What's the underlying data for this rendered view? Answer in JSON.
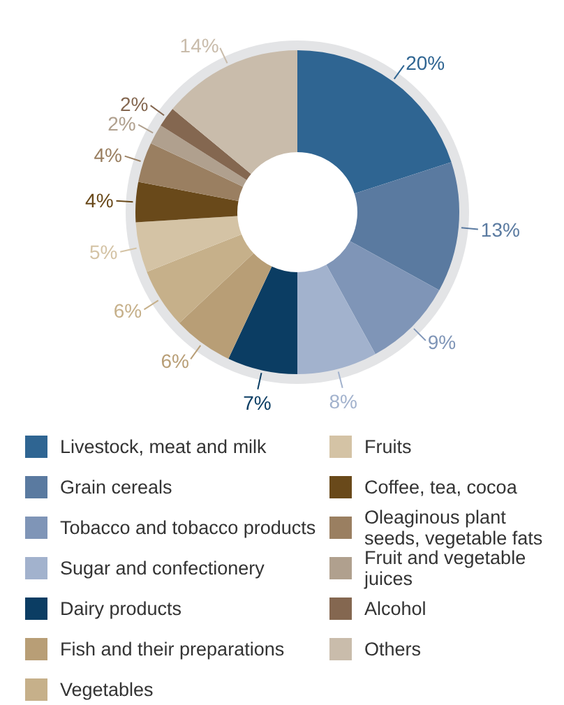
{
  "chart_data": {
    "type": "donut",
    "categories": [
      "Livestock, meat and milk",
      "Grain cereals",
      "Tobacco and tobacco products",
      "Sugar and confectionery",
      "Dairy products",
      "Fish and their preparations",
      "Vegetables",
      "Fruits",
      "Coffee, tea, cocoa",
      "Oleaginous plant seeds, vegetable fats",
      "Fruit and vegetable juices",
      "Alcohol",
      "Others"
    ],
    "values": [
      20,
      13,
      9,
      8,
      7,
      6,
      6,
      5,
      4,
      4,
      2,
      2,
      14
    ],
    "value_labels": [
      "20%",
      "13%",
      "9%",
      "8%",
      "7%",
      "6%",
      "6%",
      "5%",
      "4%",
      "4%",
      "2%",
      "2%",
      "14%"
    ],
    "colors": [
      "#2f6592",
      "#5a7aa0",
      "#7f95b7",
      "#a2b2cd",
      "#0b3d63",
      "#b89e76",
      "#c6b08a",
      "#d4c3a5",
      "#69491a",
      "#9a7f61",
      "#b0a08e",
      "#846750",
      "#c9bcab"
    ],
    "legend": "bottom"
  }
}
